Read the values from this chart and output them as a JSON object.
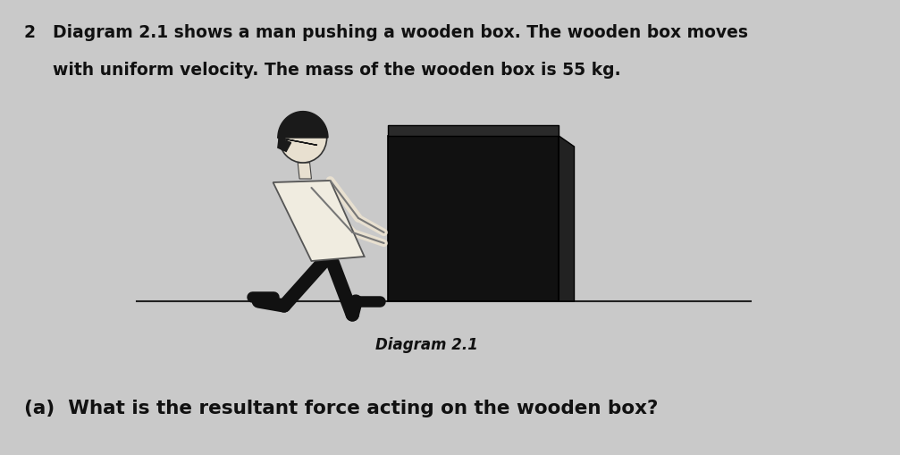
{
  "background_color": "#c9c9c9",
  "question_number": "2",
  "question_text_line1": "Diagram 2.1 shows a man pushing a wooden box. The wooden box moves",
  "question_text_line2": "with uniform velocity. The mass of the wooden box is 55 kg.",
  "diagram_label": "Diagram 2.1",
  "part_a_text": "(a)  What is the resultant force acting on the wooden box?",
  "text_color": "#111111",
  "question_fontsize": 13.5,
  "part_fontsize": 15.5,
  "diagram_fontsize": 12,
  "fig_width": 10.07,
  "fig_height": 5.09,
  "dpi": 100
}
